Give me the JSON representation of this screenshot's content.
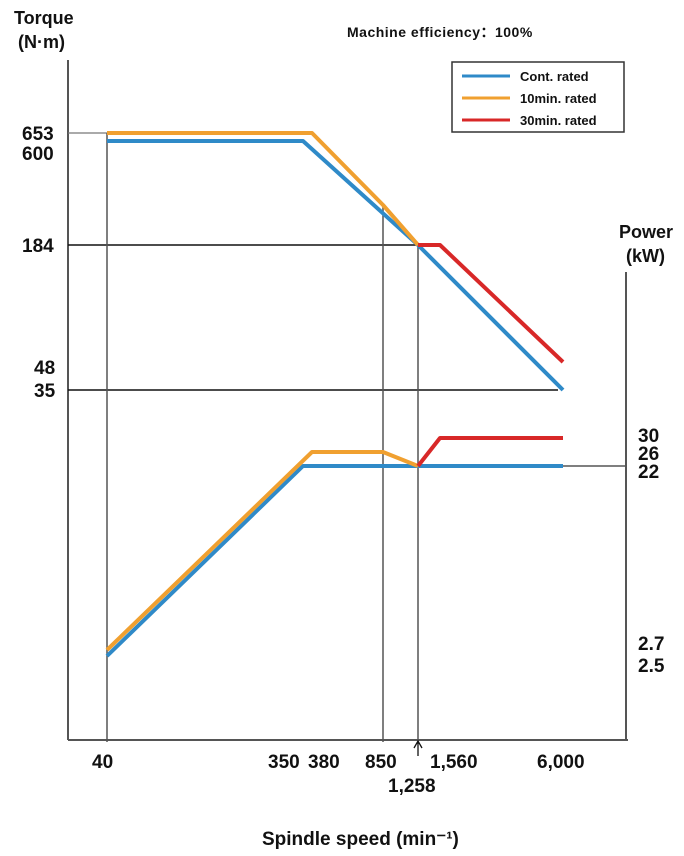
{
  "chart_data": {
    "type": "line",
    "note": "Machine efficiency：100%",
    "left_axis": {
      "label_line1": "Torque",
      "label_line2": "(N·m)",
      "ticks": [
        "653",
        "600",
        "184",
        "48",
        "35"
      ]
    },
    "right_axis": {
      "label_line1": "Power",
      "label_line2": "(kW)",
      "ticks": [
        "30",
        "26",
        "22",
        "2.7",
        "2.5"
      ]
    },
    "x_axis": {
      "label": "Spindle speed (min⁻¹)",
      "ticks": [
        "40",
        "350",
        "380",
        "850",
        "1,258",
        "1,560",
        "6,000"
      ]
    },
    "legend": [
      {
        "label": "Cont. rated",
        "color": "#2f8ac8"
      },
      {
        "label": "10min. rated",
        "color": "#f0a030"
      },
      {
        "label": "30min. rated",
        "color": "#d82828"
      }
    ],
    "series": [
      {
        "name": "Cont. rated",
        "quantity": "torque",
        "color": "#2f8ac8",
        "x": [
          40,
          350,
          1258,
          6000
        ],
        "y": [
          600,
          600,
          184,
          35
        ]
      },
      {
        "name": "10min. rated",
        "quantity": "torque",
        "color": "#f0a030",
        "x": [
          40,
          380,
          850,
          1258
        ],
        "y": [
          653,
          653,
          325,
          184
        ]
      },
      {
        "name": "30min. rated",
        "quantity": "torque",
        "color": "#d82828",
        "x": [
          1258,
          1560,
          6000
        ],
        "y": [
          184,
          184,
          48
        ]
      },
      {
        "name": "Cont. rated",
        "quantity": "power",
        "color": "#2f8ac8",
        "x": [
          40,
          350,
          6000
        ],
        "y": [
          2.5,
          22,
          22
        ]
      },
      {
        "name": "10min. rated",
        "quantity": "power",
        "color": "#f0a030",
        "x": [
          40,
          380,
          850,
          1258
        ],
        "y": [
          2.7,
          26,
          26,
          22
        ]
      },
      {
        "name": "30min. rated",
        "quantity": "power",
        "color": "#d82828",
        "x": [
          1258,
          1560,
          6000
        ],
        "y": [
          22,
          30,
          30
        ]
      }
    ]
  }
}
